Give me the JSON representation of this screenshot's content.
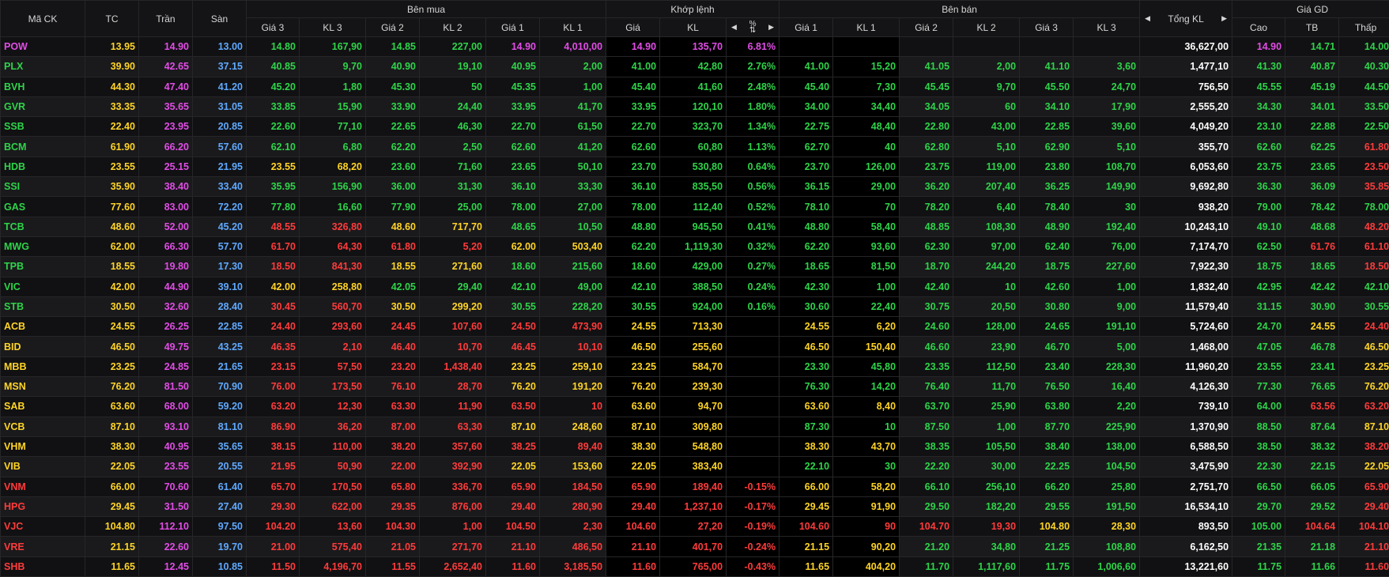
{
  "colors": {
    "up": "#2fd34a",
    "down": "#ff3b3b",
    "ref": "#ffd426",
    "ceil": "#e24ce6",
    "floor": "#5fa9ff",
    "neutral": "#ffffff"
  },
  "headers": {
    "symbol": "Mã CK",
    "ref": "TC",
    "ceil": "Trần",
    "floor": "Sàn",
    "buy": "Bên mua",
    "match": "Khớp lệnh",
    "sell": "Bên bán",
    "total": "Tổng KL",
    "range": "Giá GD",
    "buy_cols": [
      "Giá 3",
      "KL 3",
      "Giá 2",
      "KL 2",
      "Giá 1",
      "KL 1"
    ],
    "match_cols": [
      "Giá",
      "KL"
    ],
    "sell_cols": [
      "Giá 1",
      "KL 1",
      "Giá 2",
      "KL 2",
      "Giá 3",
      "KL 3"
    ],
    "range_cols": [
      "Cao",
      "TB",
      "Thấp"
    ]
  },
  "icons": {
    "prev": "caret-left-icon",
    "next": "caret-right-icon",
    "sort": "sort-icon"
  },
  "rows": [
    {
      "s": "POW",
      "tc": "13.95",
      "ce": "14.90",
      "fl": "13.00",
      "b3": "14.80",
      "v3": "167,90",
      "b2": "14.85",
      "v2": "227,00",
      "b1": "14.90",
      "v1": "4,010,00",
      "mp": "14.90",
      "mv": "135,70",
      "pct": "6.81%",
      "s1": "",
      "w1": "",
      "s2": "",
      "w2": "",
      "s3": "",
      "w3": "",
      "tot": "36,627,00",
      "hi": "14.90",
      "avg": "14.71",
      "lo": "14.00"
    },
    {
      "s": "PLX",
      "tc": "39.90",
      "ce": "42.65",
      "fl": "37.15",
      "b3": "40.85",
      "v3": "9,70",
      "b2": "40.90",
      "v2": "19,10",
      "b1": "40.95",
      "v1": "2,00",
      "mp": "41.00",
      "mv": "42,80",
      "pct": "2.76%",
      "s1": "41.00",
      "w1": "15,20",
      "s2": "41.05",
      "w2": "2,00",
      "s3": "41.10",
      "w3": "3,60",
      "tot": "1,477,10",
      "hi": "41.30",
      "avg": "40.87",
      "lo": "40.30"
    },
    {
      "s": "BVH",
      "tc": "44.30",
      "ce": "47.40",
      "fl": "41.20",
      "b3": "45.20",
      "v3": "1,80",
      "b2": "45.30",
      "v2": "50",
      "b1": "45.35",
      "v1": "1,00",
      "mp": "45.40",
      "mv": "41,60",
      "pct": "2.48%",
      "s1": "45.40",
      "w1": "7,30",
      "s2": "45.45",
      "w2": "9,70",
      "s3": "45.50",
      "w3": "24,70",
      "tot": "756,50",
      "hi": "45.55",
      "avg": "45.19",
      "lo": "44.50"
    },
    {
      "s": "GVR",
      "tc": "33.35",
      "ce": "35.65",
      "fl": "31.05",
      "b3": "33.85",
      "v3": "15,90",
      "b2": "33.90",
      "v2": "24,40",
      "b1": "33.95",
      "v1": "41,70",
      "mp": "33.95",
      "mv": "120,10",
      "pct": "1.80%",
      "s1": "34.00",
      "w1": "34,40",
      "s2": "34.05",
      "w2": "60",
      "s3": "34.10",
      "w3": "17,90",
      "tot": "2,555,20",
      "hi": "34.30",
      "avg": "34.01",
      "lo": "33.50"
    },
    {
      "s": "SSB",
      "tc": "22.40",
      "ce": "23.95",
      "fl": "20.85",
      "b3": "22.60",
      "v3": "77,10",
      "b2": "22.65",
      "v2": "46,30",
      "b1": "22.70",
      "v1": "61,50",
      "mp": "22.70",
      "mv": "323,70",
      "pct": "1.34%",
      "s1": "22.75",
      "w1": "48,40",
      "s2": "22.80",
      "w2": "43,00",
      "s3": "22.85",
      "w3": "39,60",
      "tot": "4,049,20",
      "hi": "23.10",
      "avg": "22.88",
      "lo": "22.50"
    },
    {
      "s": "BCM",
      "tc": "61.90",
      "ce": "66.20",
      "fl": "57.60",
      "b3": "62.10",
      "v3": "6,80",
      "b2": "62.20",
      "v2": "2,50",
      "b1": "62.60",
      "v1": "41,20",
      "mp": "62.60",
      "mv": "60,80",
      "pct": "1.13%",
      "s1": "62.70",
      "w1": "40",
      "s2": "62.80",
      "w2": "5,10",
      "s3": "62.90",
      "w3": "5,10",
      "tot": "355,70",
      "hi": "62.60",
      "avg": "62.25",
      "lo": "61.80"
    },
    {
      "s": "HDB",
      "tc": "23.55",
      "ce": "25.15",
      "fl": "21.95",
      "b3": "23.55",
      "v3": "68,20",
      "b2": "23.60",
      "v2": "71,60",
      "b1": "23.65",
      "v1": "50,10",
      "mp": "23.70",
      "mv": "530,80",
      "pct": "0.64%",
      "s1": "23.70",
      "w1": "126,00",
      "s2": "23.75",
      "w2": "119,00",
      "s3": "23.80",
      "w3": "108,70",
      "tot": "6,053,60",
      "hi": "23.75",
      "avg": "23.65",
      "lo": "23.50"
    },
    {
      "s": "SSI",
      "tc": "35.90",
      "ce": "38.40",
      "fl": "33.40",
      "b3": "35.95",
      "v3": "156,90",
      "b2": "36.00",
      "v2": "31,30",
      "b1": "36.10",
      "v1": "33,30",
      "mp": "36.10",
      "mv": "835,50",
      "pct": "0.56%",
      "s1": "36.15",
      "w1": "29,00",
      "s2": "36.20",
      "w2": "207,40",
      "s3": "36.25",
      "w3": "149,90",
      "tot": "9,692,80",
      "hi": "36.30",
      "avg": "36.09",
      "lo": "35.85"
    },
    {
      "s": "GAS",
      "tc": "77.60",
      "ce": "83.00",
      "fl": "72.20",
      "b3": "77.80",
      "v3": "16,60",
      "b2": "77.90",
      "v2": "25,00",
      "b1": "78.00",
      "v1": "27,00",
      "mp": "78.00",
      "mv": "112,40",
      "pct": "0.52%",
      "s1": "78.10",
      "w1": "70",
      "s2": "78.20",
      "w2": "6,40",
      "s3": "78.40",
      "w3": "30",
      "tot": "938,20",
      "hi": "79.00",
      "avg": "78.42",
      "lo": "78.00"
    },
    {
      "s": "TCB",
      "tc": "48.60",
      "ce": "52.00",
      "fl": "45.20",
      "b3": "48.55",
      "v3": "326,80",
      "b2": "48.60",
      "v2": "717,70",
      "b1": "48.65",
      "v1": "10,50",
      "mp": "48.80",
      "mv": "945,50",
      "pct": "0.41%",
      "s1": "48.80",
      "w1": "58,40",
      "s2": "48.85",
      "w2": "108,30",
      "s3": "48.90",
      "w3": "192,40",
      "tot": "10,243,10",
      "hi": "49.10",
      "avg": "48.68",
      "lo": "48.20"
    },
    {
      "s": "MWG",
      "tc": "62.00",
      "ce": "66.30",
      "fl": "57.70",
      "b3": "61.70",
      "v3": "64,30",
      "b2": "61.80",
      "v2": "5,20",
      "b1": "62.00",
      "v1": "503,40",
      "mp": "62.20",
      "mv": "1,119,30",
      "pct": "0.32%",
      "s1": "62.20",
      "w1": "93,60",
      "s2": "62.30",
      "w2": "97,00",
      "s3": "62.40",
      "w3": "76,00",
      "tot": "7,174,70",
      "hi": "62.50",
      "avg": "61.76",
      "lo": "61.10"
    },
    {
      "s": "TPB",
      "tc": "18.55",
      "ce": "19.80",
      "fl": "17.30",
      "b3": "18.50",
      "v3": "841,30",
      "b2": "18.55",
      "v2": "271,60",
      "b1": "18.60",
      "v1": "215,60",
      "mp": "18.60",
      "mv": "429,00",
      "pct": "0.27%",
      "s1": "18.65",
      "w1": "81,50",
      "s2": "18.70",
      "w2": "244,20",
      "s3": "18.75",
      "w3": "227,60",
      "tot": "7,922,30",
      "hi": "18.75",
      "avg": "18.65",
      "lo": "18.50"
    },
    {
      "s": "VIC",
      "tc": "42.00",
      "ce": "44.90",
      "fl": "39.10",
      "b3": "42.00",
      "v3": "258,80",
      "b2": "42.05",
      "v2": "29,40",
      "b1": "42.10",
      "v1": "49,00",
      "mp": "42.10",
      "mv": "388,50",
      "pct": "0.24%",
      "s1": "42.30",
      "w1": "1,00",
      "s2": "42.40",
      "w2": "10",
      "s3": "42.60",
      "w3": "1,00",
      "tot": "1,832,40",
      "hi": "42.95",
      "avg": "42.42",
      "lo": "42.10"
    },
    {
      "s": "STB",
      "tc": "30.50",
      "ce": "32.60",
      "fl": "28.40",
      "b3": "30.45",
      "v3": "560,70",
      "b2": "30.50",
      "v2": "299,20",
      "b1": "30.55",
      "v1": "228,20",
      "mp": "30.55",
      "mv": "924,00",
      "pct": "0.16%",
      "s1": "30.60",
      "w1": "22,40",
      "s2": "30.75",
      "w2": "20,50",
      "s3": "30.80",
      "w3": "9,00",
      "tot": "11,579,40",
      "hi": "31.15",
      "avg": "30.90",
      "lo": "30.55"
    },
    {
      "s": "ACB",
      "tc": "24.55",
      "ce": "26.25",
      "fl": "22.85",
      "b3": "24.40",
      "v3": "293,60",
      "b2": "24.45",
      "v2": "107,60",
      "b1": "24.50",
      "v1": "473,90",
      "mp": "24.55",
      "mv": "713,30",
      "pct": "",
      "s1": "24.55",
      "w1": "6,20",
      "s2": "24.60",
      "w2": "128,00",
      "s3": "24.65",
      "w3": "191,10",
      "tot": "5,724,60",
      "hi": "24.70",
      "avg": "24.55",
      "lo": "24.40"
    },
    {
      "s": "BID",
      "tc": "46.50",
      "ce": "49.75",
      "fl": "43.25",
      "b3": "46.35",
      "v3": "2,10",
      "b2": "46.40",
      "v2": "10,70",
      "b1": "46.45",
      "v1": "10,10",
      "mp": "46.50",
      "mv": "255,60",
      "pct": "",
      "s1": "46.50",
      "w1": "150,40",
      "s2": "46.60",
      "w2": "23,90",
      "s3": "46.70",
      "w3": "5,00",
      "tot": "1,468,00",
      "hi": "47.05",
      "avg": "46.78",
      "lo": "46.50"
    },
    {
      "s": "MBB",
      "tc": "23.25",
      "ce": "24.85",
      "fl": "21.65",
      "b3": "23.15",
      "v3": "57,50",
      "b2": "23.20",
      "v2": "1,438,40",
      "b1": "23.25",
      "v1": "259,10",
      "mp": "23.25",
      "mv": "584,70",
      "pct": "",
      "s1": "23.30",
      "w1": "45,80",
      "s2": "23.35",
      "w2": "112,50",
      "s3": "23.40",
      "w3": "228,30",
      "tot": "11,960,20",
      "hi": "23.55",
      "avg": "23.41",
      "lo": "23.25"
    },
    {
      "s": "MSN",
      "tc": "76.20",
      "ce": "81.50",
      "fl": "70.90",
      "b3": "76.00",
      "v3": "173,50",
      "b2": "76.10",
      "v2": "28,70",
      "b1": "76.20",
      "v1": "191,20",
      "mp": "76.20",
      "mv": "239,30",
      "pct": "",
      "s1": "76.30",
      "w1": "14,20",
      "s2": "76.40",
      "w2": "11,70",
      "s3": "76.50",
      "w3": "16,40",
      "tot": "4,126,30",
      "hi": "77.30",
      "avg": "76.65",
      "lo": "76.20"
    },
    {
      "s": "SAB",
      "tc": "63.60",
      "ce": "68.00",
      "fl": "59.20",
      "b3": "63.20",
      "v3": "12,30",
      "b2": "63.30",
      "v2": "11,90",
      "b1": "63.50",
      "v1": "10",
      "mp": "63.60",
      "mv": "94,70",
      "pct": "",
      "s1": "63.60",
      "w1": "8,40",
      "s2": "63.70",
      "w2": "25,90",
      "s3": "63.80",
      "w3": "2,20",
      "tot": "739,10",
      "hi": "64.00",
      "avg": "63.56",
      "lo": "63.20"
    },
    {
      "s": "VCB",
      "tc": "87.10",
      "ce": "93.10",
      "fl": "81.10",
      "b3": "86.90",
      "v3": "36,20",
      "b2": "87.00",
      "v2": "63,30",
      "b1": "87.10",
      "v1": "248,60",
      "mp": "87.10",
      "mv": "309,80",
      "pct": "",
      "s1": "87.30",
      "w1": "10",
      "s2": "87.50",
      "w2": "1,00",
      "s3": "87.70",
      "w3": "225,90",
      "tot": "1,370,90",
      "hi": "88.50",
      "avg": "87.64",
      "lo": "87.10"
    },
    {
      "s": "VHM",
      "tc": "38.30",
      "ce": "40.95",
      "fl": "35.65",
      "b3": "38.15",
      "v3": "110,00",
      "b2": "38.20",
      "v2": "357,60",
      "b1": "38.25",
      "v1": "89,40",
      "mp": "38.30",
      "mv": "548,80",
      "pct": "",
      "s1": "38.30",
      "w1": "43,70",
      "s2": "38.35",
      "w2": "105,50",
      "s3": "38.40",
      "w3": "138,00",
      "tot": "6,588,50",
      "hi": "38.50",
      "avg": "38.32",
      "lo": "38.20"
    },
    {
      "s": "VIB",
      "tc": "22.05",
      "ce": "23.55",
      "fl": "20.55",
      "b3": "21.95",
      "v3": "50,90",
      "b2": "22.00",
      "v2": "392,90",
      "b1": "22.05",
      "v1": "153,60",
      "mp": "22.05",
      "mv": "383,40",
      "pct": "",
      "s1": "22.10",
      "w1": "30",
      "s2": "22.20",
      "w2": "30,00",
      "s3": "22.25",
      "w3": "104,50",
      "tot": "3,475,90",
      "hi": "22.30",
      "avg": "22.15",
      "lo": "22.05"
    },
    {
      "s": "VNM",
      "tc": "66.00",
      "ce": "70.60",
      "fl": "61.40",
      "b3": "65.70",
      "v3": "170,50",
      "b2": "65.80",
      "v2": "336,70",
      "b1": "65.90",
      "v1": "184,50",
      "mp": "65.90",
      "mv": "189,40",
      "pct": "-0.15%",
      "s1": "66.00",
      "w1": "58,20",
      "s2": "66.10",
      "w2": "256,10",
      "s3": "66.20",
      "w3": "25,80",
      "tot": "2,751,70",
      "hi": "66.50",
      "avg": "66.05",
      "lo": "65.90"
    },
    {
      "s": "HPG",
      "tc": "29.45",
      "ce": "31.50",
      "fl": "27.40",
      "b3": "29.30",
      "v3": "622,00",
      "b2": "29.35",
      "v2": "876,00",
      "b1": "29.40",
      "v1": "280,90",
      "mp": "29.40",
      "mv": "1,237,10",
      "pct": "-0.17%",
      "s1": "29.45",
      "w1": "91,90",
      "s2": "29.50",
      "w2": "182,20",
      "s3": "29.55",
      "w3": "191,50",
      "tot": "16,534,10",
      "hi": "29.70",
      "avg": "29.52",
      "lo": "29.40"
    },
    {
      "s": "VJC",
      "tc": "104.80",
      "ce": "112.10",
      "fl": "97.50",
      "b3": "104.20",
      "v3": "13,60",
      "b2": "104.30",
      "v2": "1,00",
      "b1": "104.50",
      "v1": "2,30",
      "mp": "104.60",
      "mv": "27,20",
      "pct": "-0.19%",
      "s1": "104.60",
      "w1": "90",
      "s2": "104.70",
      "w2": "19,30",
      "s3": "104.80",
      "w3": "28,30",
      "tot": "893,50",
      "hi": "105.00",
      "avg": "104.64",
      "lo": "104.10"
    },
    {
      "s": "VRE",
      "tc": "21.15",
      "ce": "22.60",
      "fl": "19.70",
      "b3": "21.00",
      "v3": "575,40",
      "b2": "21.05",
      "v2": "271,70",
      "b1": "21.10",
      "v1": "486,50",
      "mp": "21.10",
      "mv": "401,70",
      "pct": "-0.24%",
      "s1": "21.15",
      "w1": "90,20",
      "s2": "21.20",
      "w2": "34,80",
      "s3": "21.25",
      "w3": "108,80",
      "tot": "6,162,50",
      "hi": "21.35",
      "avg": "21.18",
      "lo": "21.10"
    },
    {
      "s": "SHB",
      "tc": "11.65",
      "ce": "12.45",
      "fl": "10.85",
      "b3": "11.50",
      "v3": "4,196,70",
      "b2": "11.55",
      "v2": "2,652,40",
      "b1": "11.60",
      "v1": "3,185,50",
      "mp": "11.60",
      "mv": "765,00",
      "pct": "-0.43%",
      "s1": "11.65",
      "w1": "404,20",
      "s2": "11.70",
      "w2": "1,117,60",
      "s3": "11.75",
      "w3": "1,006,60",
      "tot": "13,221,60",
      "hi": "11.75",
      "avg": "11.66",
      "lo": "11.60"
    }
  ]
}
